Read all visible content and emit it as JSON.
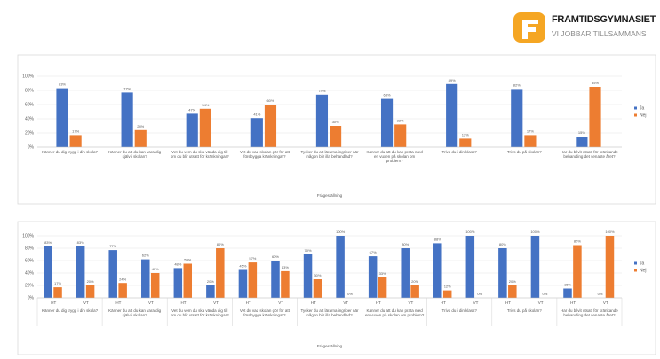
{
  "logo": {
    "name": "FRAMTIDSGYMNASIET",
    "tagline": "VI JOBBAR TILLSAMMANS"
  },
  "chart_data": [
    {
      "type": "bar",
      "categories": [
        "Känner du dig trygg i din skola?",
        "Känner du att du kan vara dig själv i skolan?",
        "Vet du vem du ska vända dig till om du blir utsatt för kränkningar?",
        "Vet du vad skolan gör för att förebygga kränkningar?",
        "Tycker du att lärarna ingriper när någon blir illa behandlad?",
        "Känner du att du kan prata med en vuxen på skolan om problem?",
        "Trivs du i din klass?",
        "Trivs du på skolan?",
        "Har du blivit utsatt för kränkande behandling det senaste året?"
      ],
      "series": [
        {
          "name": "Ja",
          "color": "#4472c4",
          "values": [
            83,
            77,
            47,
            41,
            74,
            68,
            89,
            82,
            15
          ],
          "value_labels": [
            "83%",
            "77%",
            "47%",
            "41%",
            "74%",
            "68%",
            "89%",
            "82%",
            "15%"
          ]
        },
        {
          "name": "Nej",
          "color": "#ed7d31",
          "values": [
            17,
            24,
            54,
            60,
            30,
            32,
            12,
            17,
            85
          ],
          "value_labels": [
            "17%",
            "24%",
            "54%",
            "60%",
            "30%",
            "32%",
            "12%",
            "17%",
            "85%"
          ]
        }
      ],
      "x_label": "Frågeställning",
      "ylim": [
        0,
        100
      ],
      "yticks": [
        {
          "value": 0,
          "label": "0%"
        },
        {
          "value": 20,
          "label": "20%"
        },
        {
          "value": 40,
          "label": "40%"
        },
        {
          "value": 60,
          "label": "60%"
        },
        {
          "value": 80,
          "label": "80%"
        },
        {
          "value": 100,
          "label": "100%"
        }
      ],
      "grid": true,
      "legend": "right"
    },
    {
      "type": "bar",
      "groups": [
        "Känner du dig trygg i din skola?",
        "Känner du att du kan vara dig själv i skolan?",
        "Vet du vem du ska vända dig till om du blir utsatt för kränkningar?",
        "Vet du vad skolan gör för att förebygga kränkningar?",
        "Tycker du att lärarna ingriper när någon blir illa behandlad?",
        "Känner du att du kan prata med en vuxen på skolan om problem?",
        "Trivs du i din klass?",
        "Trivs du på skolan?",
        "Har du blivit utsatt för kränkande behandling det senaste året?"
      ],
      "categories": [
        "HT",
        "VT",
        "HT",
        "VT",
        "HT",
        "VT",
        "HT",
        "VT",
        "HT",
        "VT",
        "HT",
        "VT",
        "HT",
        "VT",
        "HT",
        "VT",
        "HT",
        "VT"
      ],
      "series": [
        {
          "name": "Ja",
          "color": "#4472c4",
          "values": [
            83,
            83,
            77,
            62,
            48,
            20,
            45,
            60,
            70,
            100,
            67,
            80,
            88,
            100,
            80,
            100,
            15,
            0
          ],
          "value_labels": [
            "83%",
            "83%",
            "77%",
            "62%",
            "48%",
            "20%",
            "45%",
            "60%",
            "70%",
            "100%",
            "67%",
            "80%",
            "88%",
            "100%",
            "80%",
            "100%",
            "15%",
            "0%"
          ]
        },
        {
          "name": "Nej",
          "color": "#ed7d31",
          "values": [
            17,
            20,
            24,
            40,
            55,
            80,
            57,
            43,
            30,
            0,
            33,
            20,
            12,
            0,
            20,
            0,
            85,
            100
          ],
          "value_labels": [
            "17%",
            "20%",
            "24%",
            "40%",
            "55%",
            "80%",
            "57%",
            "43%",
            "30%",
            "0%",
            "33%",
            "20%",
            "12%",
            "0%",
            "20%",
            "0%",
            "85%",
            "100%"
          ]
        }
      ],
      "x_label": "Frågeställning",
      "ylim": [
        0,
        100
      ],
      "yticks": [
        {
          "value": 0,
          "label": "0%"
        },
        {
          "value": 20,
          "label": "20%"
        },
        {
          "value": 40,
          "label": "40%"
        },
        {
          "value": 60,
          "label": "60%"
        },
        {
          "value": 80,
          "label": "80%"
        },
        {
          "value": 100,
          "label": "100%"
        }
      ],
      "grid": true,
      "legend": "right"
    }
  ]
}
